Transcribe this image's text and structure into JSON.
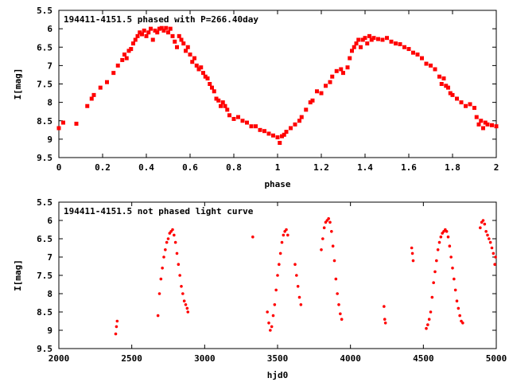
{
  "chart_data": [
    {
      "type": "scatter",
      "title": "194411-4151.5 phased with P=266.40day",
      "xlabel": "phase",
      "ylabel": "I[mag]",
      "xlim": [
        0,
        2
      ],
      "ylim": [
        5.5,
        9.5
      ],
      "y_inverted": true,
      "x_ticks": [
        "0",
        "0.2",
        "0.4",
        "0.6",
        "0.8",
        "1",
        "1.2",
        "1.4",
        "1.6",
        "1.8",
        "2"
      ],
      "y_ticks": [
        "5.5",
        "6",
        "6.5",
        "7",
        "7.5",
        "8",
        "8.5",
        "9",
        "9.5"
      ],
      "marker_color": "#ff0000",
      "series": [
        {
          "values": [
            [
              0.0,
              8.7
            ],
            [
              0.02,
              8.55
            ],
            [
              0.08,
              8.58
            ],
            [
              0.13,
              8.1
            ],
            [
              0.15,
              7.9
            ],
            [
              0.16,
              7.8
            ],
            [
              0.19,
              7.6
            ],
            [
              0.22,
              7.45
            ],
            [
              0.25,
              7.2
            ],
            [
              0.27,
              7.0
            ],
            [
              0.29,
              6.85
            ],
            [
              0.3,
              6.7
            ],
            [
              0.31,
              6.8
            ],
            [
              0.32,
              6.6
            ],
            [
              0.33,
              6.55
            ],
            [
              0.34,
              6.4
            ],
            [
              0.35,
              6.3
            ],
            [
              0.36,
              6.2
            ],
            [
              0.37,
              6.1
            ],
            [
              0.38,
              6.15
            ],
            [
              0.39,
              6.05
            ],
            [
              0.4,
              6.2
            ],
            [
              0.41,
              6.1
            ],
            [
              0.42,
              6.0
            ],
            [
              0.43,
              6.3
            ],
            [
              0.44,
              6.05
            ],
            [
              0.45,
              6.1
            ],
            [
              0.46,
              6.0
            ],
            [
              0.47,
              5.98
            ],
            [
              0.48,
              6.05
            ],
            [
              0.49,
              5.98
            ],
            [
              0.5,
              6.1
            ],
            [
              0.51,
              6.0
            ],
            [
              0.52,
              6.2
            ],
            [
              0.53,
              6.35
            ],
            [
              0.54,
              6.5
            ],
            [
              0.55,
              6.2
            ],
            [
              0.56,
              6.3
            ],
            [
              0.57,
              6.4
            ],
            [
              0.58,
              6.6
            ],
            [
              0.59,
              6.5
            ],
            [
              0.6,
              6.7
            ],
            [
              0.61,
              6.9
            ],
            [
              0.62,
              6.8
            ],
            [
              0.63,
              7.0
            ],
            [
              0.64,
              7.1
            ],
            [
              0.65,
              7.05
            ],
            [
              0.66,
              7.2
            ],
            [
              0.67,
              7.3
            ],
            [
              0.68,
              7.35
            ],
            [
              0.69,
              7.5
            ],
            [
              0.7,
              7.6
            ],
            [
              0.71,
              7.7
            ],
            [
              0.72,
              7.9
            ],
            [
              0.73,
              7.95
            ],
            [
              0.74,
              8.1
            ],
            [
              0.75,
              8.0
            ],
            [
              0.76,
              8.1
            ],
            [
              0.77,
              8.2
            ],
            [
              0.78,
              8.35
            ],
            [
              0.8,
              8.45
            ],
            [
              0.82,
              8.4
            ],
            [
              0.84,
              8.5
            ],
            [
              0.86,
              8.55
            ],
            [
              0.88,
              8.65
            ],
            [
              0.9,
              8.65
            ],
            [
              0.92,
              8.75
            ],
            [
              0.94,
              8.78
            ],
            [
              0.96,
              8.85
            ],
            [
              0.98,
              8.9
            ],
            [
              1.0,
              8.95
            ],
            [
              1.01,
              9.1
            ],
            [
              1.02,
              8.92
            ],
            [
              1.03,
              8.88
            ],
            [
              1.04,
              8.8
            ],
            [
              1.06,
              8.7
            ],
            [
              1.08,
              8.6
            ],
            [
              1.1,
              8.5
            ],
            [
              1.11,
              8.4
            ],
            [
              1.13,
              8.2
            ],
            [
              1.15,
              8.0
            ],
            [
              1.16,
              7.95
            ],
            [
              1.18,
              7.7
            ],
            [
              1.2,
              7.75
            ],
            [
              1.22,
              7.55
            ],
            [
              1.24,
              7.45
            ],
            [
              1.25,
              7.3
            ],
            [
              1.27,
              7.15
            ],
            [
              1.29,
              7.1
            ],
            [
              1.3,
              7.2
            ],
            [
              1.32,
              7.05
            ],
            [
              1.33,
              6.8
            ],
            [
              1.34,
              6.6
            ],
            [
              1.35,
              6.5
            ],
            [
              1.36,
              6.4
            ],
            [
              1.37,
              6.3
            ],
            [
              1.38,
              6.5
            ],
            [
              1.39,
              6.3
            ],
            [
              1.4,
              6.25
            ],
            [
              1.41,
              6.4
            ],
            [
              1.42,
              6.2
            ],
            [
              1.43,
              6.3
            ],
            [
              1.44,
              6.25
            ],
            [
              1.46,
              6.28
            ],
            [
              1.48,
              6.3
            ],
            [
              1.5,
              6.25
            ],
            [
              1.52,
              6.35
            ],
            [
              1.54,
              6.4
            ],
            [
              1.56,
              6.42
            ],
            [
              1.58,
              6.5
            ],
            [
              1.6,
              6.55
            ],
            [
              1.62,
              6.65
            ],
            [
              1.64,
              6.7
            ],
            [
              1.66,
              6.8
            ],
            [
              1.68,
              6.95
            ],
            [
              1.7,
              7.0
            ],
            [
              1.72,
              7.1
            ],
            [
              1.74,
              7.3
            ],
            [
              1.75,
              7.5
            ],
            [
              1.76,
              7.35
            ],
            [
              1.77,
              7.55
            ],
            [
              1.78,
              7.6
            ],
            [
              1.79,
              7.75
            ],
            [
              1.8,
              7.8
            ],
            [
              1.82,
              7.9
            ],
            [
              1.84,
              8.0
            ],
            [
              1.86,
              8.1
            ],
            [
              1.88,
              8.05
            ],
            [
              1.9,
              8.15
            ],
            [
              1.91,
              8.4
            ],
            [
              1.92,
              8.6
            ],
            [
              1.93,
              8.5
            ],
            [
              1.94,
              8.7
            ],
            [
              1.95,
              8.55
            ],
            [
              1.96,
              8.6
            ],
            [
              1.98,
              8.62
            ],
            [
              2.0,
              8.65
            ]
          ]
        }
      ]
    },
    {
      "type": "scatter",
      "title": "194411-4151.5 not phased light curve",
      "xlabel": "hjd0",
      "ylabel": "I[mag]",
      "xlim": [
        2000,
        5000
      ],
      "ylim": [
        5.5,
        9.5
      ],
      "y_inverted": true,
      "x_ticks": [
        "2000",
        "2500",
        "3000",
        "3500",
        "4000",
        "4500",
        "5000"
      ],
      "y_ticks": [
        "5.5",
        "6",
        "6.5",
        "7",
        "7.5",
        "8",
        "8.5",
        "9",
        "9.5"
      ],
      "marker_color": "#ff0000",
      "series": [
        {
          "values": [
            [
              2390,
              9.1
            ],
            [
              2395,
              8.9
            ],
            [
              2400,
              8.75
            ],
            [
              2680,
              8.6
            ],
            [
              2690,
              8.0
            ],
            [
              2700,
              7.6
            ],
            [
              2710,
              7.3
            ],
            [
              2720,
              7.0
            ],
            [
              2730,
              6.8
            ],
            [
              2740,
              6.6
            ],
            [
              2750,
              6.5
            ],
            [
              2760,
              6.35
            ],
            [
              2770,
              6.3
            ],
            [
              2780,
              6.25
            ],
            [
              2790,
              6.4
            ],
            [
              2800,
              6.6
            ],
            [
              2810,
              6.9
            ],
            [
              2820,
              7.2
            ],
            [
              2830,
              7.5
            ],
            [
              2840,
              7.8
            ],
            [
              2850,
              8.0
            ],
            [
              2860,
              8.2
            ],
            [
              2870,
              8.3
            ],
            [
              2880,
              8.4
            ],
            [
              2885,
              8.5
            ],
            [
              3330,
              6.45
            ],
            [
              3430,
              8.5
            ],
            [
              3440,
              8.8
            ],
            [
              3450,
              9.0
            ],
            [
              3460,
              8.9
            ],
            [
              3470,
              8.6
            ],
            [
              3480,
              8.3
            ],
            [
              3490,
              7.9
            ],
            [
              3500,
              7.5
            ],
            [
              3510,
              7.2
            ],
            [
              3520,
              6.9
            ],
            [
              3530,
              6.6
            ],
            [
              3540,
              6.4
            ],
            [
              3550,
              6.3
            ],
            [
              3560,
              6.25
            ],
            [
              3570,
              6.4
            ],
            [
              3620,
              7.2
            ],
            [
              3630,
              7.5
            ],
            [
              3640,
              7.8
            ],
            [
              3650,
              8.1
            ],
            [
              3660,
              8.3
            ],
            [
              3800,
              6.8
            ],
            [
              3810,
              6.5
            ],
            [
              3820,
              6.2
            ],
            [
              3830,
              6.05
            ],
            [
              3840,
              6.0
            ],
            [
              3850,
              5.95
            ],
            [
              3860,
              6.05
            ],
            [
              3870,
              6.3
            ],
            [
              3880,
              6.7
            ],
            [
              3890,
              7.1
            ],
            [
              3900,
              7.6
            ],
            [
              3910,
              8.0
            ],
            [
              3920,
              8.3
            ],
            [
              3930,
              8.55
            ],
            [
              3940,
              8.7
            ],
            [
              4230,
              8.35
            ],
            [
              4235,
              8.7
            ],
            [
              4240,
              8.8
            ],
            [
              4420,
              6.75
            ],
            [
              4425,
              6.9
            ],
            [
              4430,
              7.1
            ],
            [
              4520,
              8.95
            ],
            [
              4530,
              8.85
            ],
            [
              4540,
              8.7
            ],
            [
              4550,
              8.5
            ],
            [
              4560,
              8.1
            ],
            [
              4570,
              7.7
            ],
            [
              4580,
              7.4
            ],
            [
              4590,
              7.1
            ],
            [
              4600,
              6.8
            ],
            [
              4610,
              6.6
            ],
            [
              4620,
              6.45
            ],
            [
              4630,
              6.35
            ],
            [
              4640,
              6.3
            ],
            [
              4650,
              6.25
            ],
            [
              4660,
              6.3
            ],
            [
              4670,
              6.45
            ],
            [
              4680,
              6.7
            ],
            [
              4690,
              7.0
            ],
            [
              4700,
              7.3
            ],
            [
              4710,
              7.6
            ],
            [
              4720,
              7.9
            ],
            [
              4730,
              8.2
            ],
            [
              4740,
              8.4
            ],
            [
              4750,
              8.6
            ],
            [
              4760,
              8.75
            ],
            [
              4770,
              8.8
            ],
            [
              4890,
              6.2
            ],
            [
              4900,
              6.05
            ],
            [
              4910,
              6.0
            ],
            [
              4920,
              6.1
            ],
            [
              4930,
              6.3
            ],
            [
              4940,
              6.4
            ],
            [
              4950,
              6.5
            ],
            [
              4960,
              6.6
            ],
            [
              4970,
              6.75
            ],
            [
              4980,
              6.9
            ],
            [
              4990,
              7.2
            ],
            [
              4995,
              7.0
            ]
          ]
        }
      ]
    }
  ]
}
